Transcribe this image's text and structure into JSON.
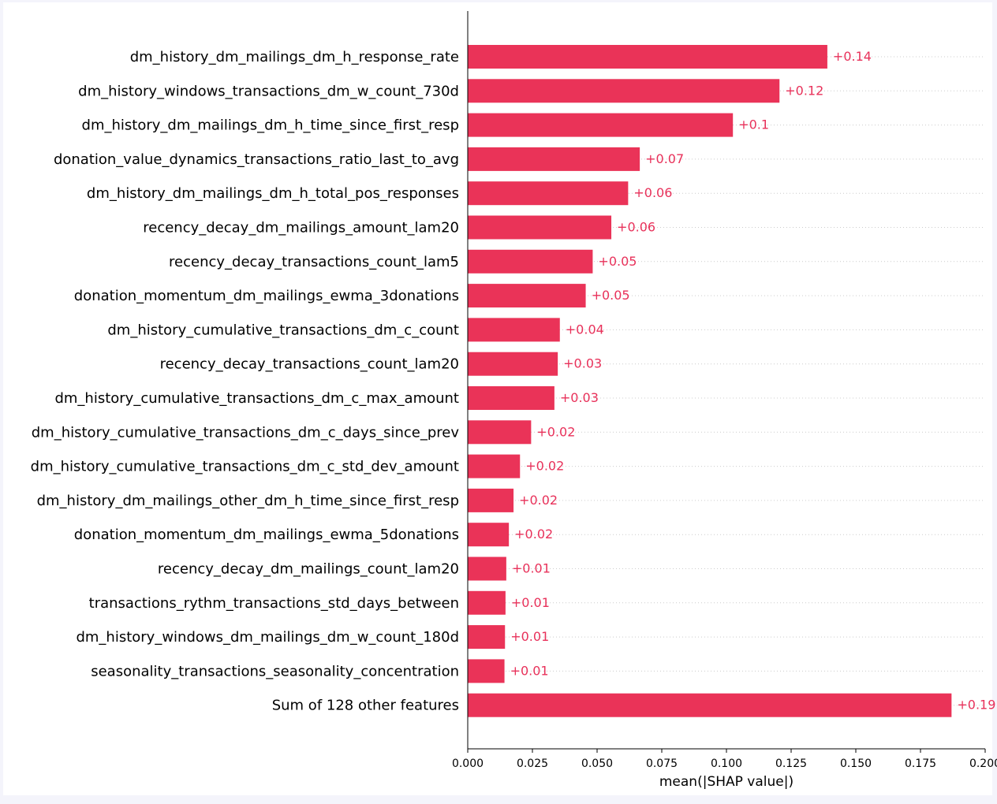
{
  "colors": {
    "bar": "#ea3358",
    "value_text": "#e8315a",
    "axis": "#000000",
    "guide": "#cccccc",
    "page_background": "#f4f4fb",
    "plot_background": "#ffffff"
  },
  "chart_data": {
    "type": "bar",
    "orientation": "horizontal",
    "title": "",
    "xlabel": "mean(|SHAP value|)",
    "ylabel": "",
    "xlim": [
      0,
      0.2
    ],
    "xticks": [
      "0.000",
      "0.025",
      "0.050",
      "0.075",
      "0.100",
      "0.125",
      "0.150",
      "0.175",
      "0.200"
    ],
    "grid": "dotted row guides",
    "categories": [
      "dm_history_dm_mailings_dm_h_response_rate",
      "dm_history_windows_transactions_dm_w_count_730d",
      "dm_history_dm_mailings_dm_h_time_since_first_resp",
      "donation_value_dynamics_transactions_ratio_last_to_avg",
      "dm_history_dm_mailings_dm_h_total_pos_responses",
      "recency_decay_dm_mailings_amount_lam20",
      "recency_decay_transactions_count_lam5",
      "donation_momentum_dm_mailings_ewma_3donations",
      "dm_history_cumulative_transactions_dm_c_count",
      "recency_decay_transactions_count_lam20",
      "dm_history_cumulative_transactions_dm_c_max_amount",
      "dm_history_cumulative_transactions_dm_c_days_since_prev",
      "dm_history_cumulative_transactions_dm_c_std_dev_amount",
      "dm_history_dm_mailings_other_dm_h_time_since_first_resp",
      "donation_momentum_dm_mailings_ewma_5donations",
      "recency_decay_dm_mailings_count_lam20",
      "transactions_rythm_transactions_std_days_between",
      "dm_history_windows_dm_mailings_dm_w_count_180d",
      "seasonality_transactions_seasonality_concentration",
      "Sum of 128 other features"
    ],
    "values": [
      0.139,
      0.1205,
      0.1025,
      0.0665,
      0.062,
      0.0555,
      0.0483,
      0.0456,
      0.0356,
      0.0348,
      0.0335,
      0.0245,
      0.0202,
      0.0177,
      0.0159,
      0.0149,
      0.0146,
      0.0144,
      0.0142,
      0.187
    ],
    "data_labels": [
      "+0.14",
      "+0.12",
      "+0.1",
      "+0.07",
      "+0.06",
      "+0.06",
      "+0.05",
      "+0.05",
      "+0.04",
      "+0.03",
      "+0.03",
      "+0.02",
      "+0.02",
      "+0.02",
      "+0.02",
      "+0.01",
      "+0.01",
      "+0.01",
      "+0.01",
      "+0.19"
    ]
  }
}
